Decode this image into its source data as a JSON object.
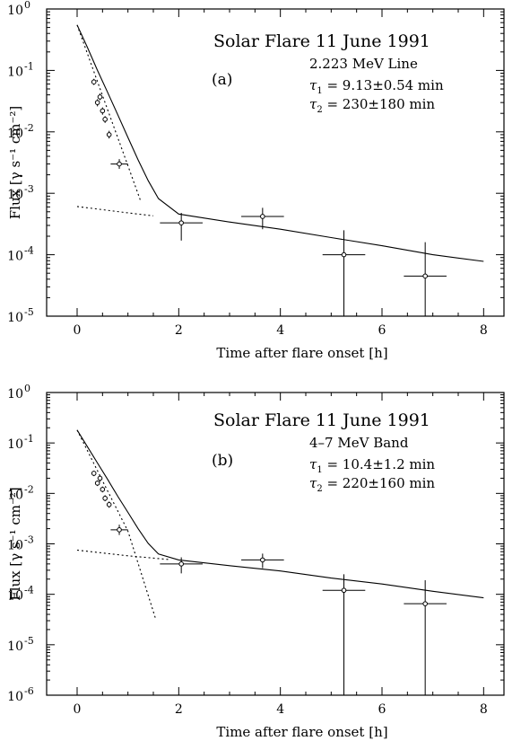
{
  "chart_data": [
    {
      "type": "scatter",
      "title": "Solar Flare 11 June 1991",
      "panel_label": "(a)",
      "subtitle": "2.223 MeV Line",
      "annotations": [
        {
          "symbol": "τ",
          "sub": "1",
          "text": " = 9.13±0.54 min"
        },
        {
          "symbol": "τ",
          "sub": "2",
          "text": " = 230±180 min"
        }
      ],
      "xlabel": "Time after flare onset [h]",
      "ylabel": "Flux [γ s⁻¹ cm⁻²]",
      "xlim": [
        -0.6,
        8.4
      ],
      "ylog": [
        -5,
        0
      ],
      "xticks": [
        "0",
        "2",
        "4",
        "6",
        "8"
      ],
      "yticks": [
        "10",
        "10",
        "10",
        "10",
        "10",
        "10"
      ],
      "ytick_exponents": [
        "-5",
        "-4",
        "-3",
        "-2",
        "-1",
        "0"
      ],
      "y_decades": [
        -5,
        -4,
        -3,
        -2,
        -1,
        0
      ],
      "points": [
        {
          "x": 0.33,
          "y": 0.065,
          "ylo": 0.058,
          "yhi": 0.073
        },
        {
          "x": 0.4,
          "y": 0.03,
          "ylo": 0.026,
          "yhi": 0.034
        },
        {
          "x": 0.45,
          "y": 0.037,
          "ylo": 0.033,
          "yhi": 0.042
        },
        {
          "x": 0.5,
          "y": 0.022,
          "ylo": 0.019,
          "yhi": 0.025
        },
        {
          "x": 0.55,
          "y": 0.016,
          "ylo": 0.014,
          "yhi": 0.018
        },
        {
          "x": 0.63,
          "y": 0.009,
          "ylo": 0.0078,
          "yhi": 0.0104
        },
        {
          "x": 0.83,
          "y": 0.003,
          "ylo": 0.0025,
          "yhi": 0.0036,
          "xerr": 0.17
        },
        {
          "x": 2.05,
          "y": 0.00033,
          "ylo": 0.00017,
          "yhi": 0.00048,
          "xerr": 0.42
        },
        {
          "x": 3.65,
          "y": 0.00042,
          "ylo": 0.00026,
          "yhi": 0.00058,
          "xerr": 0.42
        },
        {
          "x": 5.25,
          "y": 0.0001,
          "ylo": 1e-05,
          "yhi": 0.00025,
          "xerr": 0.42
        },
        {
          "x": 6.85,
          "y": 4.5e-05,
          "ylo": 1e-05,
          "yhi": 0.00016,
          "xerr": 0.42
        }
      ],
      "fit_total": {
        "x": [
          0.0,
          0.2,
          0.4,
          0.6,
          0.8,
          1.0,
          1.2,
          1.4,
          1.6,
          2.0,
          3.0,
          4.0,
          5.0,
          6.0,
          7.0,
          8.0
        ],
        "y": [
          0.55,
          0.24,
          0.1,
          0.044,
          0.019,
          0.0081,
          0.0035,
          0.0016,
          0.00082,
          0.00046,
          0.00034,
          0.00026,
          0.00019,
          0.00014,
          0.0001,
          7.8e-05
        ]
      },
      "fit_fast": {
        "x": [
          0.0,
          0.5,
          1.0,
          1.25
        ],
        "y": [
          0.55,
          0.039,
          0.0028,
          0.00075
        ]
      },
      "fit_slow": {
        "x": [
          0.0,
          1.0,
          1.5
        ],
        "y": [
          0.00061,
          0.00048,
          0.00043
        ]
      }
    },
    {
      "type": "scatter",
      "title": "Solar Flare 11 June 1991",
      "panel_label": "(b)",
      "subtitle": "4–7 MeV Band",
      "annotations": [
        {
          "symbol": "τ",
          "sub": "1",
          "text": " = 10.4±1.2 min"
        },
        {
          "symbol": "τ",
          "sub": "2",
          "text": " = 220±160 min"
        }
      ],
      "xlabel": "Time after flare onset [h]",
      "ylabel": "Flux [γ s⁻¹ cm⁻²]",
      "xlim": [
        -0.6,
        8.4
      ],
      "ylog": [
        -6,
        0
      ],
      "xticks": [
        "0",
        "2",
        "4",
        "6",
        "8"
      ],
      "yticks": [
        "10",
        "10",
        "10",
        "10",
        "10",
        "10",
        "10"
      ],
      "ytick_exponents": [
        "-6",
        "-5",
        "-4",
        "-3",
        "-2",
        "-1",
        "0"
      ],
      "y_decades": [
        -6,
        -5,
        -4,
        -3,
        -2,
        -1,
        0
      ],
      "points": [
        {
          "x": 0.33,
          "y": 0.025,
          "ylo": 0.022,
          "yhi": 0.028
        },
        {
          "x": 0.4,
          "y": 0.016,
          "ylo": 0.014,
          "yhi": 0.018
        },
        {
          "x": 0.45,
          "y": 0.02,
          "ylo": 0.017,
          "yhi": 0.023
        },
        {
          "x": 0.5,
          "y": 0.012,
          "ylo": 0.0105,
          "yhi": 0.0137
        },
        {
          "x": 0.55,
          "y": 0.008,
          "ylo": 0.007,
          "yhi": 0.0092
        },
        {
          "x": 0.63,
          "y": 0.006,
          "ylo": 0.0052,
          "yhi": 0.0069
        },
        {
          "x": 0.83,
          "y": 0.0019,
          "ylo": 0.0015,
          "yhi": 0.0024,
          "xerr": 0.17
        },
        {
          "x": 2.05,
          "y": 0.0004,
          "ylo": 0.00026,
          "yhi": 0.00054,
          "xerr": 0.42
        },
        {
          "x": 3.65,
          "y": 0.00048,
          "ylo": 0.00033,
          "yhi": 0.00064,
          "xerr": 0.42
        },
        {
          "x": 5.25,
          "y": 0.00012,
          "ylo": 1e-06,
          "yhi": 0.00025,
          "xerr": 0.42
        },
        {
          "x": 6.85,
          "y": 6.5e-05,
          "ylo": 1e-06,
          "yhi": 0.00019,
          "xerr": 0.42
        }
      ],
      "fit_total": {
        "x": [
          0.0,
          0.2,
          0.4,
          0.6,
          0.8,
          1.0,
          1.2,
          1.4,
          1.6,
          2.0,
          3.0,
          4.0,
          5.0,
          6.0,
          7.0,
          8.0
        ],
        "y": [
          0.18,
          0.085,
          0.04,
          0.019,
          0.0088,
          0.0042,
          0.002,
          0.00102,
          0.00063,
          0.00048,
          0.00037,
          0.00029,
          0.00021,
          0.00016,
          0.000115,
          8.5e-05
        ]
      },
      "fit_fast": {
        "x": [
          0.0,
          0.5,
          1.0,
          1.55
        ],
        "y": [
          0.18,
          0.0178,
          0.00178,
          3.16e-05
        ]
      },
      "fit_slow": {
        "x": [
          0.0,
          1.0,
          1.8
        ],
        "y": [
          0.00075,
          0.00058,
          0.00049
        ]
      }
    }
  ]
}
